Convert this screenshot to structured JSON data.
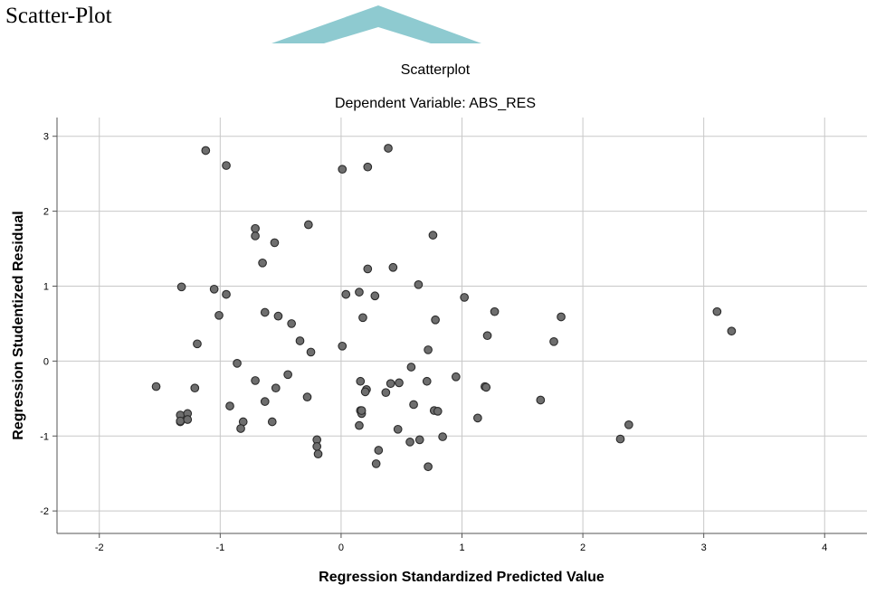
{
  "page": {
    "heading": "Scatter-Plot"
  },
  "colors": {
    "watermark": "#8ecad0",
    "point_fill": "#6e6e6e",
    "point_stroke": "#2a2a2a",
    "grid": "#c8c8c8"
  },
  "chart_data": {
    "type": "scatter",
    "title": "Scatterplot",
    "subtitle": "Dependent Variable: ABS_RES",
    "xlabel": "Regression Standardized Predicted Value",
    "ylabel": "Regression Studentized Residual",
    "xlim": [
      -2.35,
      4.35
    ],
    "ylim": [
      -2.3,
      3.25
    ],
    "xticks": [
      -2,
      -1,
      0,
      1,
      2,
      3,
      4
    ],
    "yticks": [
      -2,
      -1,
      0,
      1,
      2,
      3
    ],
    "grid": true,
    "points": [
      [
        -1.12,
        2.81
      ],
      [
        -0.95,
        2.61
      ],
      [
        0.39,
        2.84
      ],
      [
        0.01,
        2.56
      ],
      [
        0.22,
        2.59
      ],
      [
        -0.71,
        1.77
      ],
      [
        -0.71,
        1.67
      ],
      [
        -0.27,
        1.82
      ],
      [
        -0.55,
        1.58
      ],
      [
        0.76,
        1.68
      ],
      [
        -0.65,
        1.31
      ],
      [
        0.22,
        1.23
      ],
      [
        0.43,
        1.25
      ],
      [
        -1.32,
        0.99
      ],
      [
        -1.05,
        0.96
      ],
      [
        -0.95,
        0.89
      ],
      [
        0.04,
        0.89
      ],
      [
        0.15,
        0.92
      ],
      [
        0.28,
        0.87
      ],
      [
        0.64,
        1.02
      ],
      [
        1.02,
        0.85
      ],
      [
        -1.01,
        0.61
      ],
      [
        -0.63,
        0.65
      ],
      [
        -0.52,
        0.6
      ],
      [
        -0.41,
        0.5
      ],
      [
        0.18,
        0.58
      ],
      [
        0.78,
        0.55
      ],
      [
        1.27,
        0.66
      ],
      [
        1.82,
        0.59
      ],
      [
        3.11,
        0.66
      ],
      [
        3.23,
        0.4
      ],
      [
        -1.19,
        0.23
      ],
      [
        -0.34,
        0.27
      ],
      [
        -0.25,
        0.12
      ],
      [
        0.01,
        0.2
      ],
      [
        0.72,
        0.15
      ],
      [
        1.21,
        0.34
      ],
      [
        1.76,
        0.26
      ],
      [
        -0.86,
        -0.03
      ],
      [
        -1.53,
        -0.34
      ],
      [
        -1.21,
        -0.36
      ],
      [
        -0.71,
        -0.26
      ],
      [
        -0.54,
        -0.36
      ],
      [
        -0.44,
        -0.18
      ],
      [
        -0.63,
        -0.54
      ],
      [
        -0.92,
        -0.6
      ],
      [
        -0.28,
        -0.48
      ],
      [
        0.16,
        -0.27
      ],
      [
        0.21,
        -0.38
      ],
      [
        0.2,
        -0.41
      ],
      [
        0.37,
        -0.42
      ],
      [
        0.41,
        -0.3
      ],
      [
        0.48,
        -0.29
      ],
      [
        0.58,
        -0.08
      ],
      [
        0.71,
        -0.27
      ],
      [
        0.95,
        -0.21
      ],
      [
        1.19,
        -0.34
      ],
      [
        1.2,
        -0.35
      ],
      [
        0.6,
        -0.58
      ],
      [
        1.65,
        -0.52
      ],
      [
        -1.33,
        -0.72
      ],
      [
        -1.27,
        -0.7
      ],
      [
        -1.33,
        -0.81
      ],
      [
        -1.33,
        -0.8
      ],
      [
        -1.27,
        -0.78
      ],
      [
        -0.81,
        -0.81
      ],
      [
        -0.83,
        -0.9
      ],
      [
        -0.57,
        -0.81
      ],
      [
        0.16,
        -0.66
      ],
      [
        0.17,
        -0.7
      ],
      [
        0.17,
        -0.66
      ],
      [
        0.15,
        -0.86
      ],
      [
        0.47,
        -0.91
      ],
      [
        0.65,
        -1.05
      ],
      [
        0.57,
        -1.08
      ],
      [
        0.77,
        -0.66
      ],
      [
        0.8,
        -0.67
      ],
      [
        1.13,
        -0.76
      ],
      [
        0.84,
        -1.01
      ],
      [
        -0.2,
        -1.05
      ],
      [
        -0.2,
        -1.14
      ],
      [
        -0.19,
        -1.24
      ],
      [
        0.31,
        -1.19
      ],
      [
        0.29,
        -1.37
      ],
      [
        0.72,
        -1.41
      ],
      [
        2.31,
        -1.04
      ],
      [
        2.38,
        -0.85
      ]
    ]
  }
}
